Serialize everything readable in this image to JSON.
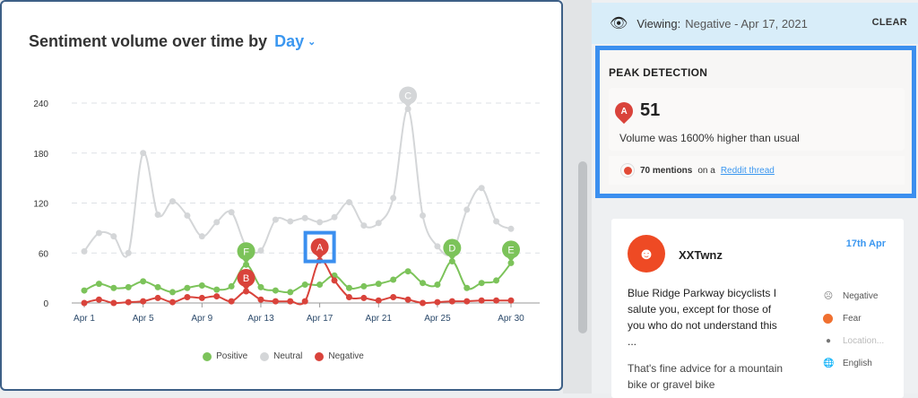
{
  "chart_panel": {
    "title": "Sentiment volume over time by",
    "granularity": "Day"
  },
  "chart_data": {
    "type": "line",
    "title": "Sentiment volume over time by Day",
    "x": [
      "Apr 1",
      "Apr 2",
      "Apr 3",
      "Apr 4",
      "Apr 5",
      "Apr 6",
      "Apr 7",
      "Apr 8",
      "Apr 9",
      "Apr 10",
      "Apr 11",
      "Apr 12",
      "Apr 13",
      "Apr 14",
      "Apr 15",
      "Apr 16",
      "Apr 17",
      "Apr 18",
      "Apr 19",
      "Apr 20",
      "Apr 21",
      "Apr 22",
      "Apr 23",
      "Apr 24",
      "Apr 25",
      "Apr 26",
      "Apr 27",
      "Apr 28",
      "Apr 29",
      "Apr 30"
    ],
    "x_ticks": [
      "Apr 1",
      "Apr 5",
      "Apr 9",
      "Apr 13",
      "Apr 17",
      "Apr 21",
      "Apr 25",
      "Apr 30"
    ],
    "y_ticks": [
      0,
      60,
      120,
      180,
      240
    ],
    "ylim": [
      0,
      250
    ],
    "grid": true,
    "legend_position": "bottom",
    "series": [
      {
        "name": "Positive",
        "color": "#7cc35a",
        "values": [
          15,
          23,
          18,
          19,
          26,
          19,
          13,
          18,
          21,
          16,
          20,
          46,
          19,
          15,
          13,
          22,
          22,
          33,
          18,
          20,
          23,
          28,
          38,
          24,
          22,
          50,
          18,
          24,
          27,
          48
        ]
      },
      {
        "name": "Neutral",
        "color": "#d4d6d8",
        "values": [
          62,
          84,
          80,
          60,
          180,
          106,
          122,
          105,
          80,
          97,
          109,
          68,
          63,
          100,
          98,
          102,
          97,
          103,
          121,
          93,
          96,
          126,
          233,
          105,
          68,
          60,
          112,
          138,
          98,
          89
        ]
      },
      {
        "name": "Negative",
        "color": "#d9433b",
        "values": [
          0,
          4,
          0,
          1,
          2,
          6,
          1,
          7,
          6,
          8,
          2,
          14,
          4,
          2,
          2,
          2,
          51,
          27,
          7,
          6,
          3,
          7,
          4,
          0,
          1,
          2,
          2,
          3,
          3,
          3
        ]
      }
    ],
    "peaks": [
      {
        "label": "A",
        "series": "Negative",
        "x": "Apr 17",
        "selected": true
      },
      {
        "label": "B",
        "series": "Negative",
        "x": "Apr 12"
      },
      {
        "label": "C",
        "series": "Neutral",
        "x": "Apr 23"
      },
      {
        "label": "D",
        "series": "Positive",
        "x": "Apr 26"
      },
      {
        "label": "E",
        "series": "Positive",
        "x": "Apr 30"
      },
      {
        "label": "F",
        "series": "Positive",
        "x": "Apr 12"
      }
    ]
  },
  "viewing": {
    "label": "Viewing:",
    "value": "Negative - Apr 17, 2021",
    "clear": "CLEAR"
  },
  "peak": {
    "heading": "PEAK DETECTION",
    "marker": "A",
    "value": "51",
    "description": "Volume was 1600% higher than usual",
    "mentions": "70 mentions",
    "mentions_mid": "on a",
    "link": "Reddit thread"
  },
  "post": {
    "user": "XXTwnz",
    "date": "17th Apr",
    "text": "Blue Ridge Parkway bicyclists I salute you, except for those of you who do not understand this ...",
    "text2": "That's fine advice for a mountain bike or gravel bike",
    "sentiment": "Negative",
    "emotion": "Fear",
    "location": "Location...",
    "language": "English"
  }
}
